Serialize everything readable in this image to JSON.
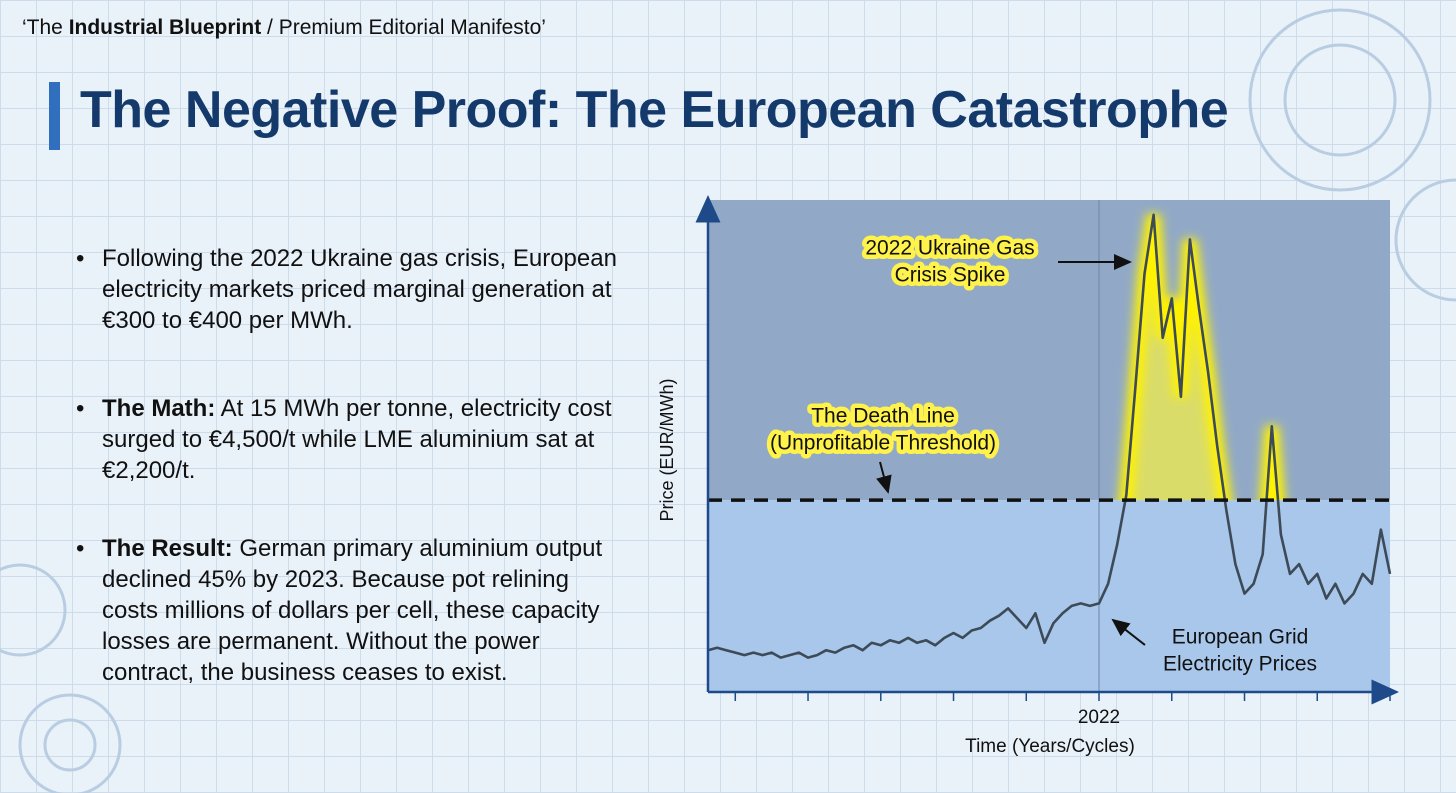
{
  "header": {
    "parts": [
      "‘The ",
      "Industrial Blueprint",
      " / Premium Editorial Manifesto’"
    ]
  },
  "title": "The Negative Proof: The European Catastrophe",
  "bullets": [
    {
      "text": "Following the 2022 Ukraine gas crisis, European electricity markets priced marginal generation at €300 to €400 per MWh."
    },
    {
      "lead": "The Math:",
      "text": "At 15 MWh per tonne, electricity cost surged to €4,500/t while LME aluminium sat at €2,200/t."
    },
    {
      "lead": "The Result:",
      "text": "German primary aluminium output declined 45% by 2023. Because pot relining costs millions of dollars per cell, these capacity losses are permanent. Without the power contract, the business ceases to exist."
    }
  ],
  "chart_data": {
    "type": "line",
    "x_label": "Time (Years/Cycles)",
    "y_label": "Price (EUR/MWh)",
    "categories": [
      null,
      null,
      null,
      null,
      null,
      null,
      null,
      null,
      null,
      null,
      null,
      null,
      null,
      null,
      null,
      null,
      null,
      null,
      null,
      null,
      null,
      null,
      null,
      null,
      null,
      null,
      null,
      null,
      null,
      null,
      null,
      null,
      null,
      null,
      null,
      null,
      null,
      null,
      null,
      null,
      null,
      null,
      null,
      "2022",
      null,
      null,
      null,
      null,
      null,
      null,
      null,
      null,
      null,
      null,
      null,
      null,
      null,
      null,
      null,
      null,
      null,
      null,
      null,
      null,
      null,
      null,
      null,
      null,
      null,
      null,
      null,
      null,
      null,
      null,
      null,
      null
    ],
    "series": [
      {
        "color": "#3d4a58",
        "values": [
          8.5,
          9,
          8.5,
          8,
          7.5,
          8,
          7.5,
          8,
          7,
          7.5,
          8,
          7,
          7.5,
          8.5,
          8,
          9,
          9.5,
          8.5,
          10,
          9.5,
          10.5,
          10,
          11,
          10,
          10.5,
          9.5,
          11,
          12,
          11,
          12.5,
          13,
          14.5,
          15.5,
          17,
          15,
          13,
          16,
          10,
          14,
          16,
          17.5,
          18,
          17.5,
          18,
          22,
          30,
          40,
          62,
          85,
          97,
          72,
          80,
          60,
          92,
          78,
          65,
          50,
          37,
          26,
          20,
          22,
          28,
          54,
          32,
          24,
          26,
          22,
          24,
          19,
          22,
          18,
          20,
          24,
          22,
          33,
          24
        ]
      }
    ],
    "ylim": [
      0,
      100
    ],
    "threshold": {
      "value": 39,
      "lines": [
        "The Death Line",
        "(Unprofitable Threshold)"
      ]
    },
    "annotations": [
      {
        "lines": [
          "2022 Ukraine Gas",
          "Crisis Spike"
        ]
      },
      {
        "lines": [
          "European Grid",
          "Electricity Prices"
        ]
      }
    ]
  }
}
